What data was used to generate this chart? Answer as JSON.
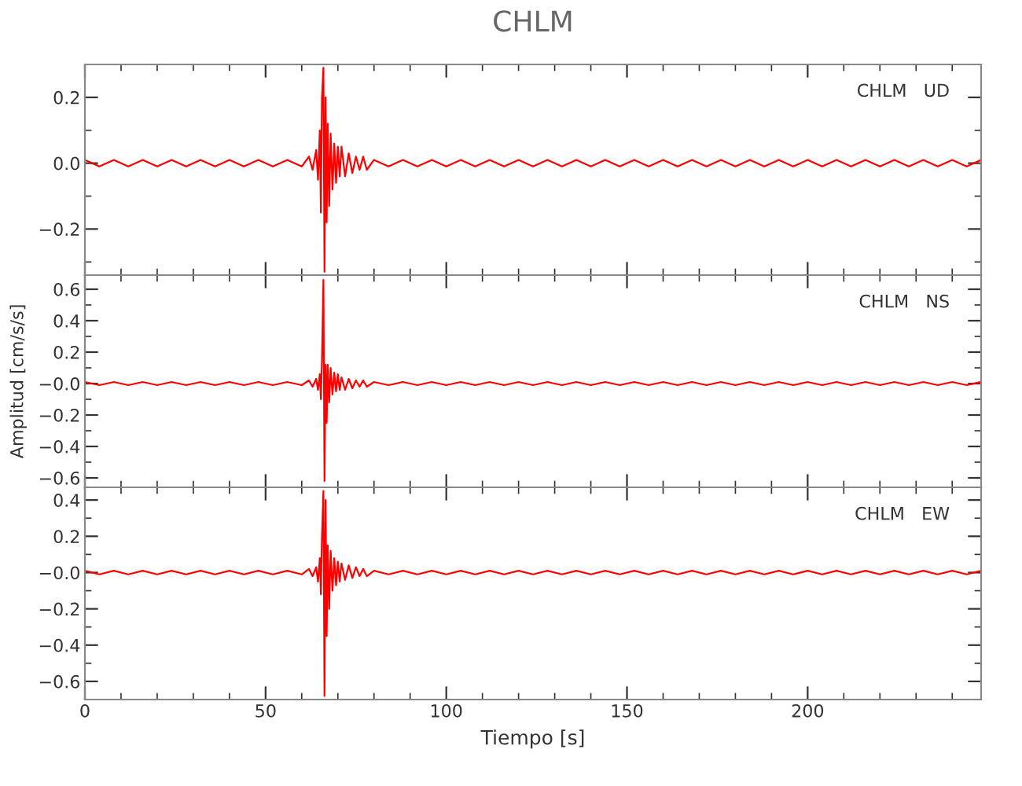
{
  "chart_data": [
    {
      "type": "line",
      "title": "CHLM",
      "annotations": [
        "CHLM   UD"
      ],
      "tick_labels": "y",
      "grid": false,
      "xlim": [
        0,
        248
      ],
      "xticks": [
        0,
        50,
        100,
        150,
        200
      ],
      "ylim": [
        -0.34,
        0.3
      ],
      "yticks": [
        {
          "value": -0.2,
          "label": "−0.2"
        },
        {
          "value": 0,
          "label": "0.0"
        },
        {
          "value": 0.2,
          "label": "0.2"
        }
      ],
      "x": [
        0,
        4,
        8,
        12,
        16,
        20,
        24,
        28,
        32,
        36,
        40,
        44,
        48,
        52,
        56,
        60,
        62,
        63,
        64,
        64.5,
        65,
        65.3,
        65.6,
        66,
        66.3,
        66.6,
        66.9,
        67.2,
        67.6,
        68,
        68.5,
        69,
        69.5,
        70,
        70.5,
        71,
        72,
        73,
        74,
        75,
        76,
        77,
        78,
        80,
        84,
        88,
        92,
        96,
        100,
        104,
        108,
        112,
        116,
        120,
        124,
        128,
        132,
        136,
        140,
        144,
        148,
        152,
        156,
        160,
        164,
        168,
        172,
        176,
        180,
        184,
        188,
        192,
        196,
        200,
        204,
        208,
        212,
        216,
        220,
        224,
        228,
        232,
        236,
        240,
        244,
        248
      ],
      "series": [
        {
          "color": "#ff0000",
          "values": [
            0.01,
            -0.01,
            0.01,
            -0.01,
            0.01,
            -0.01,
            0.01,
            -0.01,
            0.01,
            -0.01,
            0.01,
            -0.01,
            0.01,
            -0.01,
            0.01,
            -0.01,
            0.02,
            -0.02,
            0.04,
            -0.05,
            0.1,
            -0.15,
            0.2,
            0.29,
            -0.33,
            0.2,
            -0.18,
            0.12,
            -0.13,
            0.09,
            -0.08,
            0.06,
            -0.06,
            0.05,
            -0.04,
            0.05,
            -0.04,
            0.03,
            -0.03,
            0.02,
            -0.02,
            0.02,
            -0.02,
            0.01,
            -0.01,
            0.01,
            -0.01,
            0.01,
            -0.01,
            0.01,
            -0.01,
            0.01,
            -0.01,
            0.01,
            -0.01,
            0.01,
            -0.01,
            0.01,
            -0.01,
            0.01,
            -0.01,
            0.01,
            -0.01,
            0.01,
            -0.01,
            0.01,
            -0.01,
            0.01,
            -0.01,
            0.01,
            -0.01,
            0.01,
            -0.01,
            0.01,
            -0.01,
            0.01,
            -0.01,
            0.01,
            -0.01,
            0.01,
            -0.01,
            0.01,
            -0.01,
            0.01,
            -0.01,
            0.01
          ]
        }
      ]
    },
    {
      "type": "line",
      "ylabel": "Amplitud [cm/s/s]",
      "annotations": [
        "CHLM   NS"
      ],
      "tick_labels": "y",
      "grid": false,
      "xlim": [
        0,
        248
      ],
      "xticks": [
        0,
        50,
        100,
        150,
        200
      ],
      "ylim": [
        -0.66,
        0.69
      ],
      "yticks": [
        {
          "value": -0.6,
          "label": "−0.6"
        },
        {
          "value": -0.4,
          "label": "−0.4"
        },
        {
          "value": -0.2,
          "label": "−0.2"
        },
        {
          "value": 0,
          "label": "−0.0"
        },
        {
          "value": 0.2,
          "label": "0.2"
        },
        {
          "value": 0.4,
          "label": "0.4"
        },
        {
          "value": 0.6,
          "label": "0.6"
        }
      ],
      "x": [
        0,
        4,
        8,
        12,
        16,
        20,
        24,
        28,
        32,
        36,
        40,
        44,
        48,
        52,
        56,
        60,
        62,
        63,
        64,
        64.5,
        65,
        65.3,
        65.6,
        66,
        66.3,
        66.6,
        66.9,
        67.2,
        67.6,
        68,
        68.5,
        69,
        69.5,
        70,
        70.5,
        71,
        72,
        73,
        74,
        75,
        76,
        77,
        78,
        80,
        84,
        88,
        92,
        96,
        100,
        104,
        108,
        112,
        116,
        120,
        124,
        128,
        132,
        136,
        140,
        144,
        148,
        152,
        156,
        160,
        164,
        168,
        172,
        176,
        180,
        184,
        188,
        192,
        196,
        200,
        204,
        208,
        212,
        216,
        220,
        224,
        228,
        232,
        236,
        240,
        244,
        248
      ],
      "series": [
        {
          "color": "#ff0000",
          "values": [
            0.01,
            -0.01,
            0.01,
            -0.01,
            0.01,
            -0.01,
            0.01,
            -0.01,
            0.01,
            -0.01,
            0.01,
            -0.01,
            0.01,
            -0.01,
            0.01,
            -0.01,
            0.02,
            -0.02,
            0.03,
            -0.04,
            0.06,
            -0.1,
            0.15,
            0.66,
            -0.62,
            0.12,
            -0.25,
            0.12,
            -0.12,
            0.1,
            -0.07,
            0.07,
            -0.05,
            0.06,
            -0.04,
            0.04,
            -0.04,
            0.03,
            -0.03,
            0.02,
            -0.02,
            0.02,
            -0.02,
            0.01,
            -0.01,
            0.01,
            -0.01,
            0.01,
            -0.01,
            0.01,
            -0.01,
            0.01,
            -0.01,
            0.01,
            -0.01,
            0.01,
            -0.01,
            0.01,
            -0.01,
            0.01,
            -0.01,
            0.01,
            -0.01,
            0.01,
            -0.01,
            0.01,
            -0.01,
            0.01,
            -0.01,
            0.01,
            -0.01,
            0.01,
            -0.01,
            0.01,
            -0.01,
            0.01,
            -0.01,
            0.01,
            -0.01,
            0.01,
            -0.01,
            0.01,
            -0.01,
            0.01,
            -0.01,
            0.01
          ]
        }
      ]
    },
    {
      "type": "line",
      "xlabel": "Tiempo [s]",
      "annotations": [
        "CHLM   EW"
      ],
      "grid": false,
      "xlim": [
        0,
        248
      ],
      "xticks": [
        0,
        50,
        100,
        150,
        200
      ],
      "ylim": [
        -0.7,
        0.47
      ],
      "yticks": [
        {
          "value": -0.6,
          "label": "−0.6"
        },
        {
          "value": -0.4,
          "label": "−0.4"
        },
        {
          "value": -0.2,
          "label": "−0.2"
        },
        {
          "value": 0,
          "label": "−0.0"
        },
        {
          "value": 0.2,
          "label": "0.2"
        },
        {
          "value": 0.4,
          "label": "0.4"
        }
      ],
      "x": [
        0,
        4,
        8,
        12,
        16,
        20,
        24,
        28,
        32,
        36,
        40,
        44,
        48,
        52,
        56,
        60,
        62,
        63,
        64,
        64.5,
        65,
        65.3,
        65.6,
        66,
        66.3,
        66.6,
        66.9,
        67.2,
        67.6,
        68,
        68.5,
        69,
        69.5,
        70,
        70.5,
        71,
        72,
        73,
        74,
        75,
        76,
        77,
        78,
        80,
        84,
        88,
        92,
        96,
        100,
        104,
        108,
        112,
        116,
        120,
        124,
        128,
        132,
        136,
        140,
        144,
        148,
        152,
        156,
        160,
        164,
        168,
        172,
        176,
        180,
        184,
        188,
        192,
        196,
        200,
        204,
        208,
        212,
        216,
        220,
        224,
        228,
        232,
        236,
        240,
        244,
        248
      ],
      "series": [
        {
          "color": "#ff0000",
          "values": [
            0.01,
            -0.01,
            0.01,
            -0.01,
            0.01,
            -0.01,
            0.01,
            -0.01,
            0.01,
            -0.01,
            0.01,
            -0.01,
            0.01,
            -0.01,
            0.01,
            -0.01,
            0.02,
            -0.02,
            0.03,
            -0.05,
            0.08,
            -0.12,
            0.2,
            0.45,
            -0.68,
            0.4,
            -0.35,
            0.15,
            -0.2,
            0.12,
            -0.1,
            0.08,
            -0.07,
            0.06,
            -0.05,
            0.05,
            -0.04,
            0.04,
            -0.03,
            0.03,
            -0.02,
            0.02,
            -0.02,
            0.01,
            -0.01,
            0.01,
            -0.01,
            0.01,
            -0.01,
            0.01,
            -0.01,
            0.01,
            -0.01,
            0.01,
            -0.01,
            0.01,
            -0.01,
            0.01,
            -0.01,
            0.01,
            -0.01,
            0.01,
            -0.01,
            0.01,
            -0.01,
            0.01,
            -0.01,
            0.01,
            -0.01,
            0.01,
            -0.01,
            0.01,
            -0.01,
            0.01,
            -0.01,
            0.01,
            -0.01,
            0.01,
            -0.01,
            0.01,
            -0.01,
            0.01,
            -0.01,
            0.01,
            -0.01,
            0.01
          ]
        }
      ]
    }
  ]
}
